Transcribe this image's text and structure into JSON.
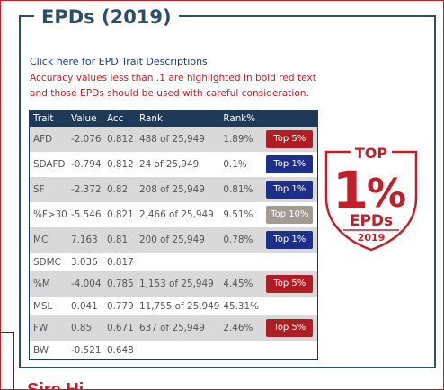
{
  "section": {
    "title": "EPDs (2019)",
    "link_text": "Click here for EPD Trait Descriptions",
    "note": "Accuracy values less than .1 are highlighted in bold red text and those EPDs should be used with careful consideration.",
    "next_heading": "Sire Hi"
  },
  "table": {
    "headers": [
      "Trait",
      "Value",
      "Acc",
      "Rank",
      "Rank%",
      ""
    ],
    "rows": [
      {
        "trait": "AFD",
        "value": "-2.076",
        "acc": "0.812",
        "rank": "488 of 25,949",
        "pct": "1.89%",
        "badge": "Top 5%",
        "badge_color": "red"
      },
      {
        "trait": "SDAFD",
        "value": "-0.794",
        "acc": "0.812",
        "rank": "24 of 25,949",
        "pct": "0.1%",
        "badge": "Top 1%",
        "badge_color": "blue"
      },
      {
        "trait": "SF",
        "value": "-2.372",
        "acc": "0.82",
        "rank": "208 of 25,949",
        "pct": "0.81%",
        "badge": "Top 1%",
        "badge_color": "blue"
      },
      {
        "trait": "%F>30",
        "value": "-5.546",
        "acc": "0.821",
        "rank": "2,466 of 25,949",
        "pct": "9.51%",
        "badge": "Top 10%",
        "badge_color": "gray"
      },
      {
        "trait": "MC",
        "value": "7.163",
        "acc": "0.81",
        "rank": "200 of 25,949",
        "pct": "0.78%",
        "badge": "Top 1%",
        "badge_color": "blue"
      },
      {
        "trait": "SDMC",
        "value": "3.036",
        "acc": "0.817",
        "rank": "",
        "pct": "",
        "badge": "",
        "badge_color": ""
      },
      {
        "trait": "%M",
        "value": "-4.004",
        "acc": "0.785",
        "rank": "1,153 of 25,949",
        "pct": "4.45%",
        "badge": "Top 5%",
        "badge_color": "red"
      },
      {
        "trait": "MSL",
        "value": "0.041",
        "acc": "0.779",
        "rank": "11,755 of 25,949",
        "pct": "45.31%",
        "badge": "",
        "badge_color": ""
      },
      {
        "trait": "FW",
        "value": "0.85",
        "acc": "0.671",
        "rank": "637 of 25,949",
        "pct": "2.46%",
        "badge": "Top 5%",
        "badge_color": "red"
      },
      {
        "trait": "BW",
        "value": "-0.521",
        "acc": "0.648",
        "rank": "",
        "pct": "",
        "badge": "",
        "badge_color": ""
      }
    ]
  },
  "seal": {
    "top": "TOP",
    "number": "1",
    "percent": "%",
    "label": "EPDs",
    "year": "2019"
  },
  "colors": {
    "navy": "#1e3a56",
    "red": "#b11d24",
    "blue": "#1e2f8a",
    "gray": "#a39a92",
    "seal_red": "#c0202a"
  }
}
